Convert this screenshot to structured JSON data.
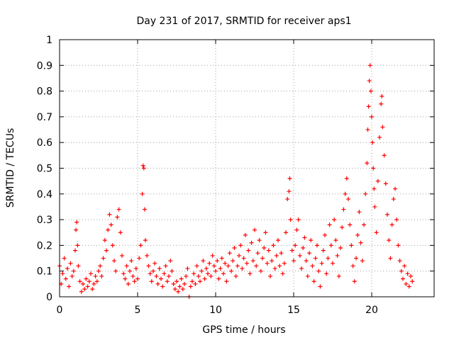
{
  "chart_data": {
    "type": "scatter",
    "title": "Day 231 of 2017, SRMTID for receiver aps1",
    "xlabel": "GPS time / hours",
    "ylabel": "SRMTID / TECUs",
    "xlim": [
      0,
      24
    ],
    "ylim": [
      0,
      1
    ],
    "x_ticks": [
      0,
      5,
      10,
      15,
      20
    ],
    "x_tick_labels": [
      "0",
      "5",
      "10",
      "15",
      "20"
    ],
    "y_ticks": [
      0,
      0.1,
      0.2,
      0.3,
      0.4,
      0.5,
      0.6,
      0.7,
      0.8,
      0.9,
      1
    ],
    "y_tick_labels": [
      "0",
      "0.1",
      "0.2",
      "0.3",
      "0.4",
      "0.5",
      "0.6",
      "0.7",
      "0.8",
      "0.9",
      "1"
    ],
    "grid": true,
    "marker": "+",
    "series": [
      {
        "name": "SRMTID",
        "color": "#ff0000",
        "points": [
          [
            0.0,
            0.12
          ],
          [
            0.1,
            0.05
          ],
          [
            0.2,
            0.09
          ],
          [
            0.3,
            0.15
          ],
          [
            0.4,
            0.07
          ],
          [
            0.5,
            0.11
          ],
          [
            0.6,
            0.04
          ],
          [
            0.7,
            0.13
          ],
          [
            0.8,
            0.08
          ],
          [
            0.9,
            0.1
          ],
          [
            1.0,
            0.18
          ],
          [
            1.05,
            0.26
          ],
          [
            1.1,
            0.29
          ],
          [
            1.15,
            0.2
          ],
          [
            1.2,
            0.12
          ],
          [
            1.3,
            0.06
          ],
          [
            1.4,
            0.02
          ],
          [
            1.5,
            0.05
          ],
          [
            1.6,
            0.03
          ],
          [
            1.7,
            0.07
          ],
          [
            1.8,
            0.04
          ],
          [
            1.9,
            0.06
          ],
          [
            2.0,
            0.09
          ],
          [
            2.1,
            0.03
          ],
          [
            2.2,
            0.05
          ],
          [
            2.3,
            0.08
          ],
          [
            2.4,
            0.06
          ],
          [
            2.5,
            0.1
          ],
          [
            2.6,
            0.12
          ],
          [
            2.7,
            0.08
          ],
          [
            2.8,
            0.15
          ],
          [
            2.9,
            0.22
          ],
          [
            3.0,
            0.18
          ],
          [
            3.1,
            0.26
          ],
          [
            3.2,
            0.32
          ],
          [
            3.3,
            0.28
          ],
          [
            3.4,
            0.2
          ],
          [
            3.5,
            0.14
          ],
          [
            3.6,
            0.1
          ],
          [
            3.7,
            0.31
          ],
          [
            3.8,
            0.34
          ],
          [
            3.9,
            0.25
          ],
          [
            4.0,
            0.16
          ],
          [
            4.1,
            0.09
          ],
          [
            4.2,
            0.07
          ],
          [
            4.3,
            0.12
          ],
          [
            4.4,
            0.05
          ],
          [
            4.5,
            0.1
          ],
          [
            4.6,
            0.14
          ],
          [
            4.7,
            0.08
          ],
          [
            4.8,
            0.06
          ],
          [
            4.9,
            0.11
          ],
          [
            5.0,
            0.07
          ],
          [
            5.1,
            0.15
          ],
          [
            5.2,
            0.2
          ],
          [
            5.3,
            0.4
          ],
          [
            5.35,
            0.51
          ],
          [
            5.4,
            0.5
          ],
          [
            5.45,
            0.34
          ],
          [
            5.5,
            0.22
          ],
          [
            5.6,
            0.16
          ],
          [
            5.7,
            0.12
          ],
          [
            5.8,
            0.09
          ],
          [
            5.9,
            0.06
          ],
          [
            6.0,
            0.1
          ],
          [
            6.1,
            0.13
          ],
          [
            6.2,
            0.08
          ],
          [
            6.3,
            0.05
          ],
          [
            6.4,
            0.11
          ],
          [
            6.5,
            0.07
          ],
          [
            6.6,
            0.04
          ],
          [
            6.7,
            0.09
          ],
          [
            6.8,
            0.12
          ],
          [
            6.9,
            0.06
          ],
          [
            7.0,
            0.08
          ],
          [
            7.1,
            0.14
          ],
          [
            7.2,
            0.1
          ],
          [
            7.3,
            0.05
          ],
          [
            7.4,
            0.03
          ],
          [
            7.5,
            0.06
          ],
          [
            7.6,
            0.02
          ],
          [
            7.7,
            0.04
          ],
          [
            7.8,
            0.07
          ],
          [
            7.9,
            0.03
          ],
          [
            8.0,
            0.05
          ],
          [
            8.1,
            0.08
          ],
          [
            8.2,
            0.11
          ],
          [
            8.3,
            0.0
          ],
          [
            8.4,
            0.04
          ],
          [
            8.5,
            0.06
          ],
          [
            8.6,
            0.09
          ],
          [
            8.7,
            0.05
          ],
          [
            8.8,
            0.12
          ],
          [
            8.9,
            0.08
          ],
          [
            9.0,
            0.06
          ],
          [
            9.1,
            0.1
          ],
          [
            9.2,
            0.14
          ],
          [
            9.3,
            0.07
          ],
          [
            9.4,
            0.11
          ],
          [
            9.5,
            0.09
          ],
          [
            9.6,
            0.13
          ],
          [
            9.7,
            0.08
          ],
          [
            9.8,
            0.16
          ],
          [
            9.9,
            0.12
          ],
          [
            10.0,
            0.1
          ],
          [
            10.1,
            0.14
          ],
          [
            10.2,
            0.07
          ],
          [
            10.3,
            0.11
          ],
          [
            10.4,
            0.15
          ],
          [
            10.5,
            0.09
          ],
          [
            10.6,
            0.13
          ],
          [
            10.7,
            0.06
          ],
          [
            10.8,
            0.12
          ],
          [
            10.9,
            0.17
          ],
          [
            11.0,
            0.1
          ],
          [
            11.1,
            0.14
          ],
          [
            11.2,
            0.19
          ],
          [
            11.3,
            0.08
          ],
          [
            11.4,
            0.12
          ],
          [
            11.5,
            0.16
          ],
          [
            11.6,
            0.2
          ],
          [
            11.7,
            0.11
          ],
          [
            11.8,
            0.15
          ],
          [
            11.9,
            0.24
          ],
          [
            12.0,
            0.13
          ],
          [
            12.1,
            0.18
          ],
          [
            12.2,
            0.09
          ],
          [
            12.3,
            0.21
          ],
          [
            12.4,
            0.14
          ],
          [
            12.5,
            0.26
          ],
          [
            12.6,
            0.12
          ],
          [
            12.7,
            0.17
          ],
          [
            12.8,
            0.22
          ],
          [
            12.9,
            0.1
          ],
          [
            13.0,
            0.15
          ],
          [
            13.1,
            0.19
          ],
          [
            13.2,
            0.25
          ],
          [
            13.3,
            0.13
          ],
          [
            13.4,
            0.18
          ],
          [
            13.5,
            0.08
          ],
          [
            13.6,
            0.14
          ],
          [
            13.7,
            0.2
          ],
          [
            13.8,
            0.11
          ],
          [
            13.9,
            0.16
          ],
          [
            14.0,
            0.22
          ],
          [
            14.1,
            0.12
          ],
          [
            14.2,
            0.17
          ],
          [
            14.3,
            0.09
          ],
          [
            14.4,
            0.13
          ],
          [
            14.5,
            0.25
          ],
          [
            14.6,
            0.38
          ],
          [
            14.7,
            0.41
          ],
          [
            14.75,
            0.46
          ],
          [
            14.8,
            0.3
          ],
          [
            14.9,
            0.18
          ],
          [
            15.0,
            0.14
          ],
          [
            15.1,
            0.2
          ],
          [
            15.2,
            0.26
          ],
          [
            15.3,
            0.3
          ],
          [
            15.4,
            0.16
          ],
          [
            15.5,
            0.11
          ],
          [
            15.6,
            0.19
          ],
          [
            15.7,
            0.23
          ],
          [
            15.8,
            0.14
          ],
          [
            15.9,
            0.08
          ],
          [
            16.0,
            0.17
          ],
          [
            16.1,
            0.22
          ],
          [
            16.2,
            0.12
          ],
          [
            16.3,
            0.06
          ],
          [
            16.4,
            0.15
          ],
          [
            16.5,
            0.2
          ],
          [
            16.6,
            0.1
          ],
          [
            16.7,
            0.04
          ],
          [
            16.8,
            0.13
          ],
          [
            16.9,
            0.18
          ],
          [
            17.0,
            0.24
          ],
          [
            17.1,
            0.09
          ],
          [
            17.2,
            0.15
          ],
          [
            17.3,
            0.28
          ],
          [
            17.4,
            0.2
          ],
          [
            17.5,
            0.13
          ],
          [
            17.6,
            0.3
          ],
          [
            17.7,
            0.22
          ],
          [
            17.8,
            0.16
          ],
          [
            17.9,
            0.08
          ],
          [
            18.0,
            0.19
          ],
          [
            18.1,
            0.27
          ],
          [
            18.2,
            0.34
          ],
          [
            18.3,
            0.4
          ],
          [
            18.4,
            0.46
          ],
          [
            18.5,
            0.38
          ],
          [
            18.6,
            0.28
          ],
          [
            18.7,
            0.2
          ],
          [
            18.8,
            0.12
          ],
          [
            18.9,
            0.06
          ],
          [
            19.0,
            0.15
          ],
          [
            19.1,
            0.24
          ],
          [
            19.2,
            0.33
          ],
          [
            19.3,
            0.21
          ],
          [
            19.4,
            0.14
          ],
          [
            19.5,
            0.28
          ],
          [
            19.6,
            0.4
          ],
          [
            19.7,
            0.52
          ],
          [
            19.75,
            0.65
          ],
          [
            19.8,
            0.74
          ],
          [
            19.85,
            0.84
          ],
          [
            19.9,
            0.9
          ],
          [
            19.95,
            0.8
          ],
          [
            20.0,
            0.7
          ],
          [
            20.05,
            0.6
          ],
          [
            20.1,
            0.5
          ],
          [
            20.15,
            0.42
          ],
          [
            20.2,
            0.35
          ],
          [
            20.3,
            0.25
          ],
          [
            20.4,
            0.45
          ],
          [
            20.5,
            0.62
          ],
          [
            20.6,
            0.75
          ],
          [
            20.65,
            0.78
          ],
          [
            20.7,
            0.66
          ],
          [
            20.8,
            0.55
          ],
          [
            20.9,
            0.44
          ],
          [
            21.0,
            0.32
          ],
          [
            21.1,
            0.22
          ],
          [
            21.2,
            0.15
          ],
          [
            21.3,
            0.28
          ],
          [
            21.4,
            0.38
          ],
          [
            21.5,
            0.42
          ],
          [
            21.6,
            0.3
          ],
          [
            21.7,
            0.2
          ],
          [
            21.8,
            0.14
          ],
          [
            21.9,
            0.1
          ],
          [
            22.0,
            0.07
          ],
          [
            22.1,
            0.12
          ],
          [
            22.2,
            0.05
          ],
          [
            22.3,
            0.09
          ],
          [
            22.4,
            0.04
          ],
          [
            22.5,
            0.08
          ],
          [
            22.6,
            0.06
          ]
        ]
      }
    ]
  }
}
